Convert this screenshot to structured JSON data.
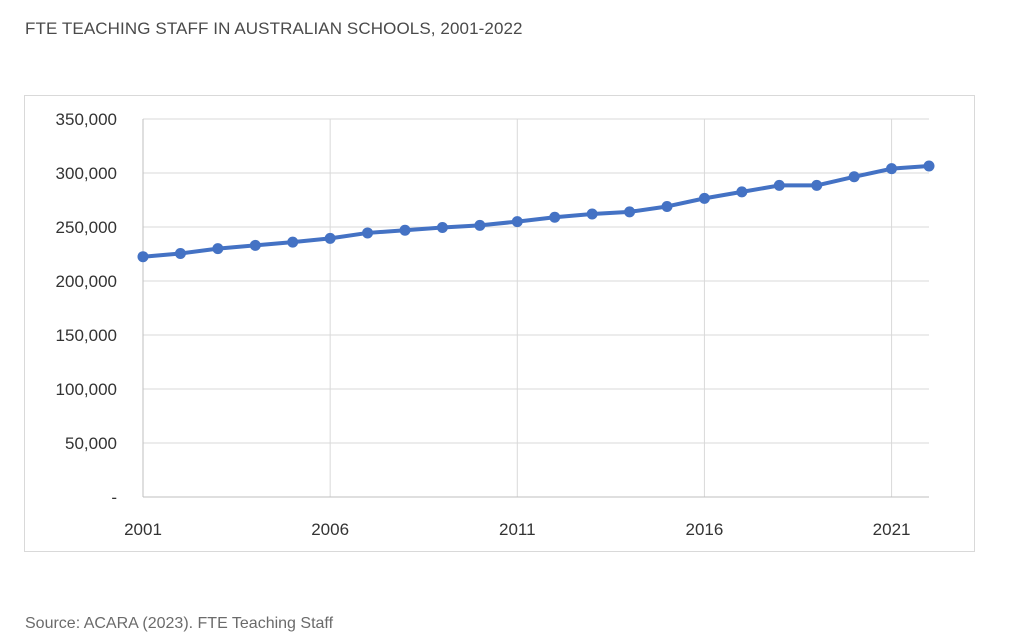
{
  "title": "FTE TEACHING STAFF IN AUSTRALIAN SCHOOLS, 2001-2022",
  "source": "Source: ACARA (2023). FTE Teaching Staff",
  "chart_data": {
    "type": "line",
    "title": "FTE TEACHING STAFF IN AUSTRALIAN SCHOOLS, 2001-2022",
    "xlabel": "",
    "ylabel": "",
    "x": [
      2001,
      2002,
      2003,
      2004,
      2005,
      2006,
      2007,
      2008,
      2009,
      2010,
      2011,
      2012,
      2013,
      2014,
      2015,
      2016,
      2017,
      2018,
      2019,
      2020,
      2021,
      2022
    ],
    "series": [
      {
        "values": [
          222500,
          225500,
          230000,
          233000,
          236000,
          239500,
          244500,
          247000,
          249500,
          251500,
          255000,
          259000,
          262000,
          264000,
          269000,
          276500,
          282500,
          288500,
          288500,
          296500,
          304000,
          306500
        ]
      }
    ],
    "xlim": [
      2001,
      2022
    ],
    "ylim": [
      0,
      350000
    ],
    "x_ticks": [
      "2001",
      "2006",
      "2011",
      "2016",
      "2021"
    ],
    "y_ticks": [
      "-",
      "50,000",
      "100,000",
      "150,000",
      "200,000",
      "250,000",
      "300,000",
      "350,000"
    ],
    "grid": true,
    "legend": "none",
    "line_color": "#4472C4"
  }
}
